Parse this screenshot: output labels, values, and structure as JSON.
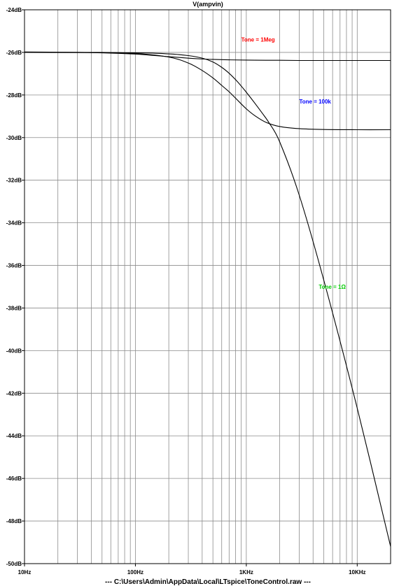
{
  "chart_data": {
    "type": "line",
    "title": "V(ampvin)",
    "xscale": "log",
    "xlim": [
      10,
      20000
    ],
    "ylim": [
      -50,
      -24
    ],
    "grid": true,
    "x_tick_labels": [
      {
        "value": 10,
        "label": "10Hz"
      },
      {
        "value": 100,
        "label": "100Hz"
      },
      {
        "value": 1000,
        "label": "1KHz"
      },
      {
        "value": 10000,
        "label": "10KHz"
      }
    ],
    "y_ticks": [
      -24,
      -26,
      -28,
      -30,
      -32,
      -34,
      -36,
      -38,
      -40,
      -42,
      -44,
      -46,
      -48,
      -50
    ],
    "y_tick_labels": [
      "-24dB",
      "-26dB",
      "-28dB",
      "-30dB",
      "-32dB",
      "-34dB",
      "-36dB",
      "-38dB",
      "-40dB",
      "-42dB",
      "-44dB",
      "-46dB",
      "-48dB",
      "-50dB"
    ],
    "footer": "---  C:\\Users\\Admin\\AppData\\Local\\LTspice\\ToneControl.raw  ---",
    "annotations": [
      {
        "text": "Tone = 1Meg",
        "color": "#ff0000",
        "x": 900,
        "y": -25.4
      },
      {
        "text": "Tone = 100k",
        "color": "#0000ff",
        "x": 3000,
        "y": -28.3
      },
      {
        "text": "Tone = 1Ω",
        "color": "#00cc00",
        "x": 4500,
        "y": -37.0
      }
    ],
    "series": [
      {
        "line_color": "#000000",
        "x": [
          10,
          20,
          50,
          100,
          150,
          200,
          300,
          400,
          500,
          700,
          1000,
          1500,
          2000,
          3000,
          5000,
          10000,
          20000
        ],
        "y": [
          -25.98,
          -25.99,
          -26.02,
          -26.08,
          -26.15,
          -26.2,
          -26.27,
          -26.31,
          -26.33,
          -26.35,
          -26.36,
          -26.37,
          -26.37,
          -26.38,
          -26.38,
          -26.38,
          -26.38
        ]
      },
      {
        "line_color": "#000000",
        "x": [
          10,
          50,
          100,
          200,
          300,
          400,
          500,
          600,
          700,
          800,
          1000,
          1200,
          1500,
          2000,
          3000,
          5000,
          10000,
          20000
        ],
        "y": [
          -26.0,
          -26.0,
          -26.05,
          -26.22,
          -26.5,
          -26.85,
          -27.2,
          -27.55,
          -27.85,
          -28.15,
          -28.65,
          -28.98,
          -29.28,
          -29.48,
          -29.58,
          -29.62,
          -29.63,
          -29.63
        ]
      },
      {
        "line_color": "#000000",
        "x": [
          10,
          100,
          200,
          300,
          400,
          500,
          600,
          700,
          800,
          900,
          1000,
          1200,
          1400,
          1600,
          2000,
          3000,
          5000,
          10000,
          20000
        ],
        "y": [
          -26.0,
          -26.02,
          -26.07,
          -26.15,
          -26.27,
          -26.45,
          -26.7,
          -26.98,
          -27.28,
          -27.58,
          -27.87,
          -28.4,
          -28.87,
          -29.3,
          -30.2,
          -32.7,
          -36.7,
          -42.7,
          -49.2
        ]
      }
    ]
  }
}
